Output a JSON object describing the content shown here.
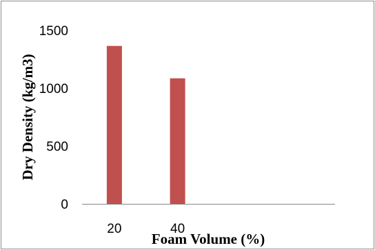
{
  "chart_data": {
    "type": "bar",
    "categories": [
      "20",
      "40",
      "",
      ""
    ],
    "values": [
      1365,
      1085,
      null,
      null
    ],
    "xlabel": "Foam Volume (%)",
    "ylabel": "Dry Density (kg/m3)",
    "ylim": [
      0,
      1500
    ],
    "yticks": [
      0,
      500,
      1000,
      1500
    ],
    "grid": false,
    "bar_color": "#c0504d",
    "axis_color": "#868686"
  }
}
